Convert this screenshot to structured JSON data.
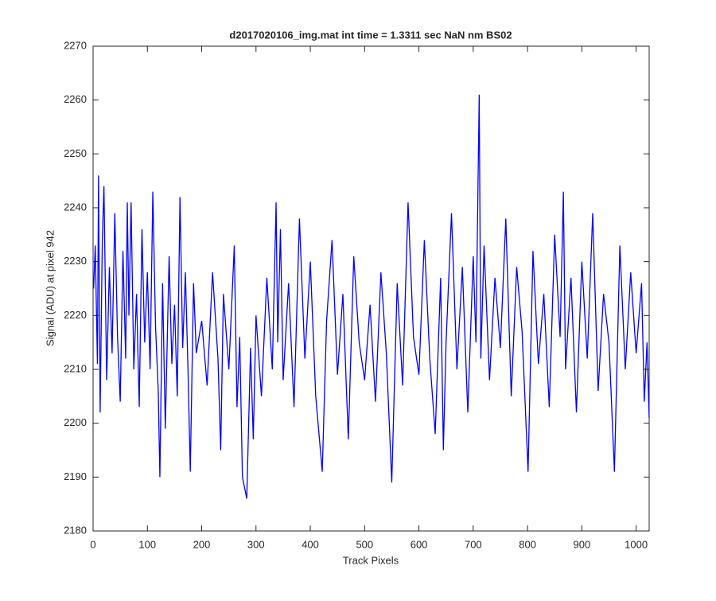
{
  "chart_data": {
    "type": "line",
    "title": "d2017020106_img.mat int time = 1.3311 sec  NaN nm BS02",
    "x_label": "Track Pixels",
    "y_label": "Signal (ADU) at pixel 942",
    "x": [
      1,
      4,
      8,
      10,
      13,
      17,
      20,
      25,
      30,
      35,
      40,
      45,
      50,
      55,
      60,
      63,
      66,
      70,
      75,
      80,
      85,
      90,
      95,
      100,
      105,
      110,
      115,
      120,
      123,
      128,
      133,
      140,
      145,
      150,
      155,
      160,
      165,
      170,
      175,
      179,
      185,
      190,
      200,
      210,
      220,
      230,
      235,
      240,
      250,
      260,
      265,
      270,
      275,
      283,
      290,
      295,
      300,
      310,
      320,
      330,
      337,
      340,
      345,
      350,
      360,
      370,
      380,
      390,
      400,
      410,
      422,
      430,
      440,
      450,
      460,
      470,
      480,
      490,
      500,
      510,
      520,
      530,
      540,
      550,
      560,
      570,
      580,
      590,
      600,
      610,
      620,
      630,
      640,
      645,
      650,
      660,
      670,
      680,
      690,
      700,
      705,
      708,
      711,
      714,
      720,
      730,
      740,
      750,
      760,
      770,
      780,
      790,
      801,
      810,
      820,
      830,
      840,
      850,
      860,
      866,
      870,
      880,
      890,
      900,
      910,
      920,
      930,
      940,
      950,
      960,
      970,
      980,
      990,
      1000,
      1010,
      1015,
      1020,
      1024
    ],
    "series": [
      {
        "color": "#0000ff",
        "values": [
          2225,
          2233,
          2211,
          2246,
          2202,
          2234,
          2244,
          2208,
          2229,
          2213,
          2239,
          2216,
          2204,
          2232,
          2212,
          2241,
          2220,
          2241,
          2210,
          2224,
          2203,
          2236,
          2215,
          2228,
          2210,
          2243,
          2218,
          2206,
          2190,
          2226,
          2199,
          2231,
          2211,
          2222,
          2205,
          2242,
          2214,
          2228,
          2209,
          2191,
          2226,
          2213,
          2219,
          2207,
          2228,
          2212,
          2195,
          2224,
          2210,
          2233,
          2203,
          2216,
          2190,
          2186,
          2214,
          2197,
          2220,
          2205,
          2227,
          2210,
          2241,
          2215,
          2236,
          2208,
          2226,
          2203,
          2238,
          2212,
          2230,
          2205,
          2191,
          2219,
          2234,
          2209,
          2224,
          2197,
          2231,
          2215,
          2208,
          2222,
          2204,
          2228,
          2213,
          2189,
          2226,
          2207,
          2241,
          2216,
          2209,
          2234,
          2212,
          2198,
          2227,
          2195,
          2215,
          2239,
          2210,
          2229,
          2202,
          2231,
          2215,
          2238,
          2261,
          2212,
          2233,
          2208,
          2227,
          2214,
          2238,
          2205,
          2229,
          2217,
          2191,
          2232,
          2211,
          2224,
          2203,
          2235,
          2216,
          2243,
          2210,
          2227,
          2202,
          2230,
          2212,
          2239,
          2206,
          2224,
          2215,
          2191,
          2233,
          2210,
          2228,
          2213,
          2226,
          2204,
          2215,
          2201
        ]
      }
    ],
    "xlim": [
      0,
      1024
    ],
    "xticks": [
      0,
      100,
      200,
      300,
      400,
      500,
      600,
      700,
      800,
      900,
      1000
    ],
    "ylim": [
      2180,
      2270
    ],
    "yticks": [
      2180,
      2190,
      2200,
      2210,
      2220,
      2230,
      2240,
      2250,
      2260,
      2270
    ]
  }
}
